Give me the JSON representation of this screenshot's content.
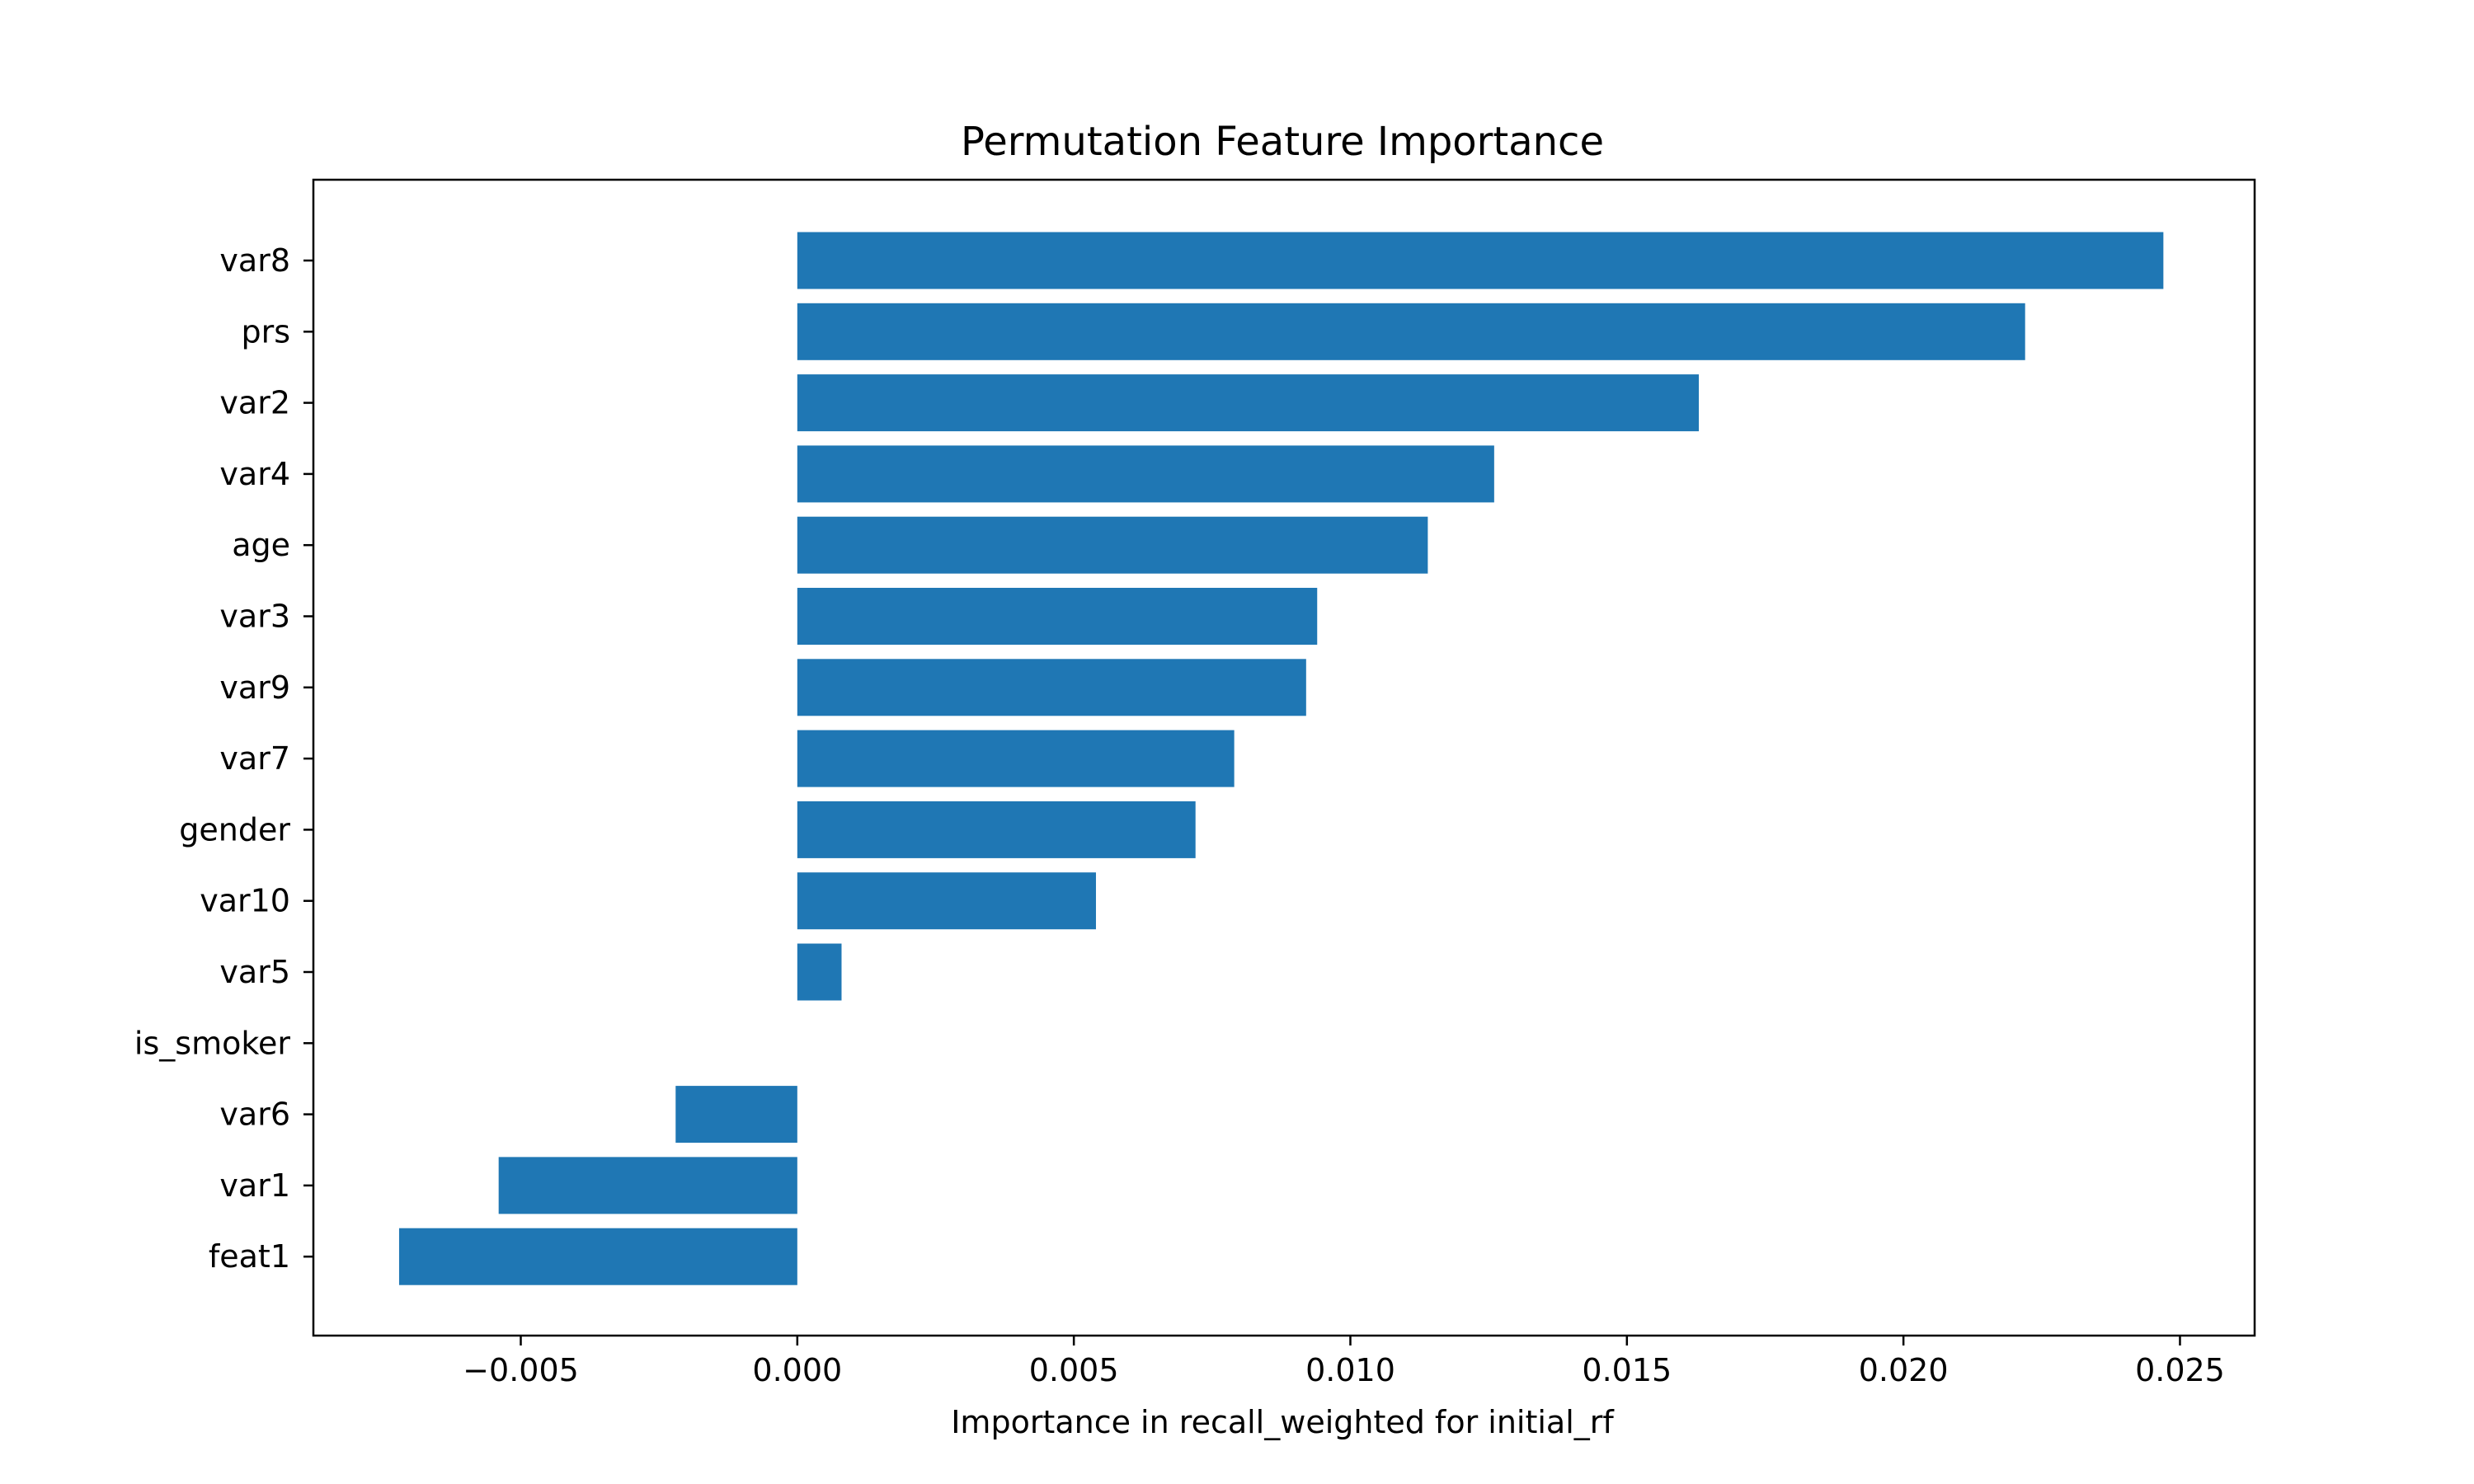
{
  "chart_data": {
    "type": "bar",
    "orientation": "horizontal",
    "title": "Permutation Feature Importance",
    "xlabel": "Importance in recall_weighted for initial_rf",
    "ylabel": "",
    "categories": [
      "var8",
      "prs",
      "var2",
      "var4",
      "age",
      "var3",
      "var9",
      "var7",
      "gender",
      "var10",
      "var5",
      "is_smoker",
      "var6",
      "var1",
      "feat1"
    ],
    "values": [
      0.0247,
      0.0222,
      0.0163,
      0.0126,
      0.0114,
      0.0094,
      0.0092,
      0.0079,
      0.0072,
      0.0054,
      0.0008,
      0.0,
      -0.0022,
      -0.0054,
      -0.0072
    ],
    "xlim": [
      -0.00875,
      0.02635
    ],
    "xticks": [
      "−0.005",
      "0.000",
      "0.005",
      "0.010",
      "0.015",
      "0.020",
      "0.025"
    ],
    "xtick_values": [
      -0.005,
      0.0,
      0.005,
      0.01,
      0.015,
      0.02,
      0.025
    ],
    "grid": false,
    "bar_color": "#1f77b4"
  }
}
